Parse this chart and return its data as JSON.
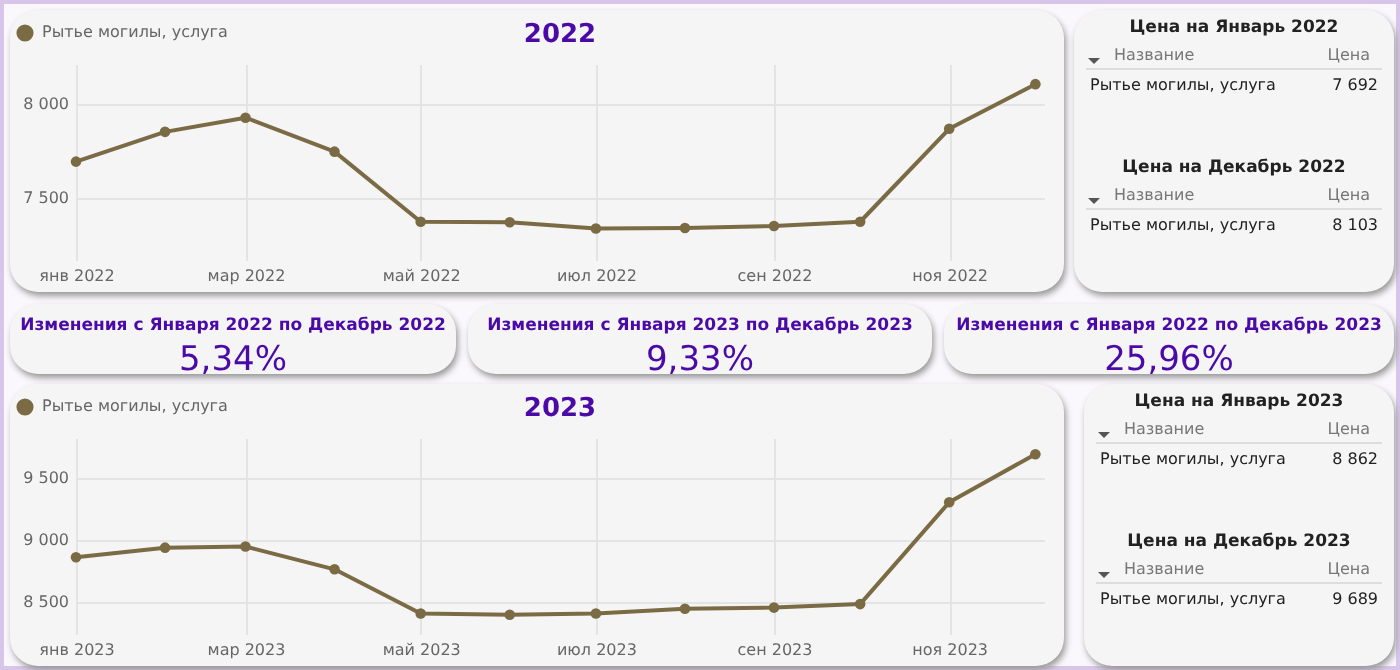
{
  "chart_data": [
    {
      "type": "line",
      "title": "2022",
      "x": [
        "2022-01",
        "2022-02",
        "2022-03",
        "2022-04",
        "2022-05",
        "2022-06",
        "2022-07",
        "2022-08",
        "2022-09",
        "2022-10",
        "2022-11",
        "2022-12"
      ],
      "series": [
        {
          "name": "Рытье могилы, услуга",
          "color": "#7b6b45",
          "values": [
            7692,
            7850,
            7925,
            7745,
            7373,
            7370,
            7337,
            7340,
            7350,
            7373,
            7866,
            8103
          ]
        }
      ],
      "xlim": [
        "2022-01",
        "2022-12-04"
      ],
      "xticks": [
        {
          "value": "2022-01",
          "label": "янв 2022"
        },
        {
          "value": "2022-03",
          "label": "мар 2022"
        },
        {
          "value": "2022-05",
          "label": "май 2022"
        },
        {
          "value": "2022-07",
          "label": "июл 2022"
        },
        {
          "value": "2022-09",
          "label": "сен 2022"
        },
        {
          "value": "2022-11",
          "label": "ноя 2022"
        }
      ],
      "ylim": [
        7170,
        8210
      ],
      "yticks": [
        {
          "value": 7500,
          "label": "7 500"
        },
        {
          "value": 8000,
          "label": "8 000"
        }
      ],
      "grid": true,
      "legend": "top left",
      "marker": "circle"
    },
    {
      "type": "other",
      "title": "Цена на Январь 2022",
      "annotations": [
        "Название",
        "Цена",
        "Рытье могилы, услуга",
        "7 692"
      ]
    },
    {
      "type": "other",
      "title": "Цена на Декабрь 2022",
      "annotations": [
        "Название",
        "Цена",
        "Рытье могилы, услуга",
        "8 103"
      ]
    },
    {
      "type": "other",
      "title": "Изменения с Января 2022 по Декабрь 2022",
      "annotations": [
        "5,34%"
      ]
    },
    {
      "type": "other",
      "title": "Изменения с Января 2023 по Декабрь 2023",
      "annotations": [
        "9,33%"
      ]
    },
    {
      "type": "other",
      "title": "Изменения с Января 2022 по Декабрь 2023",
      "annotations": [
        "25,96%"
      ]
    },
    {
      "type": "line",
      "title": "2023",
      "x": [
        "2023-01",
        "2023-02",
        "2023-03",
        "2023-04",
        "2023-05",
        "2023-06",
        "2023-07",
        "2023-08",
        "2023-09",
        "2023-10",
        "2023-11",
        "2023-12"
      ],
      "series": [
        {
          "name": "Рытье могилы, услуга",
          "color": "#7b6b45",
          "values": [
            8862,
            8939,
            8948,
            8765,
            8411,
            8401,
            8411,
            8449,
            8458,
            8486,
            9303,
            9689
          ]
        }
      ],
      "xlim": [
        "2023-01",
        "2023-12-04"
      ],
      "xticks": [
        {
          "value": "2023-01",
          "label": "янв 2023"
        },
        {
          "value": "2023-03",
          "label": "мар 2023"
        },
        {
          "value": "2023-05",
          "label": "май 2023"
        },
        {
          "value": "2023-07",
          "label": "июл 2023"
        },
        {
          "value": "2023-09",
          "label": "сен 2023"
        },
        {
          "value": "2023-11",
          "label": "ноя 2023"
        }
      ],
      "ylim": [
        8246,
        9819
      ],
      "yticks": [
        {
          "value": 8500,
          "label": "8 500"
        },
        {
          "value": 9000,
          "label": "9 000"
        },
        {
          "value": 9500,
          "label": "9 500"
        }
      ],
      "grid": true,
      "legend": "top left",
      "marker": "circle"
    },
    {
      "type": "other",
      "title": "Цена на Январь 2023",
      "annotations": [
        "Название",
        "Цена",
        "Рытье могилы, услуга",
        "8 862"
      ]
    },
    {
      "type": "other",
      "title": "Цена на Декабрь 2023",
      "annotations": [
        "Название",
        "Цена",
        "Рытье могилы, услуга",
        "9 689"
      ]
    }
  ]
}
